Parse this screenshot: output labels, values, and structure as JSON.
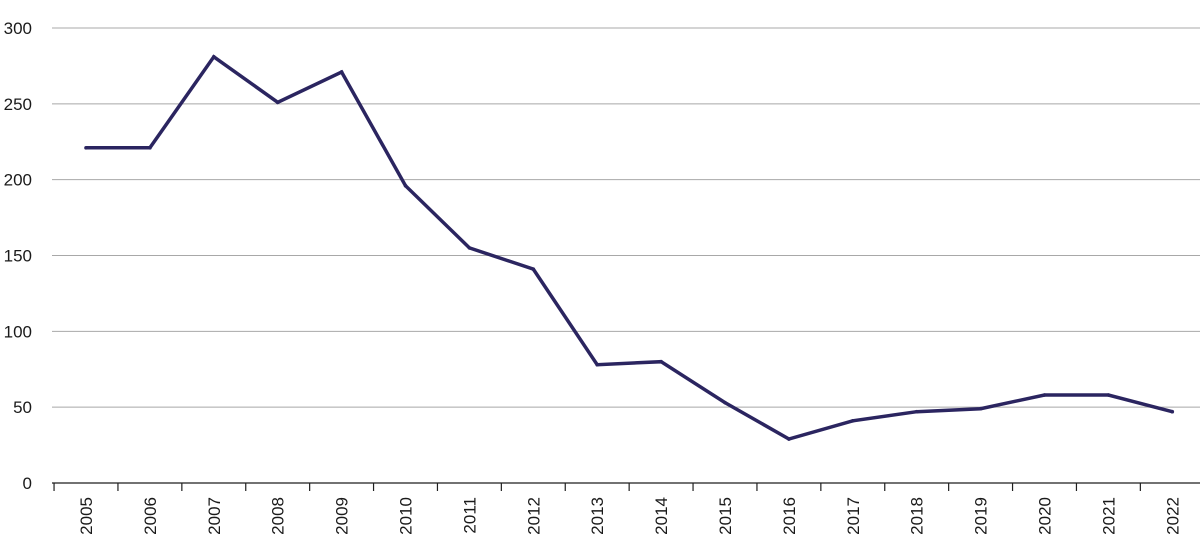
{
  "chart_data": {
    "type": "line",
    "title": "",
    "xlabel": "",
    "ylabel": "",
    "categories": [
      "2005",
      "2006",
      "2007",
      "2008",
      "2009",
      "2010",
      "2011",
      "2012",
      "2013",
      "2014",
      "2015",
      "2016",
      "2017",
      "2018",
      "2019",
      "2020",
      "2021",
      "2022"
    ],
    "series": [
      {
        "values": [
          221,
          221,
          281,
          251,
          271,
          196,
          155,
          141,
          78,
          80,
          53,
          29,
          41,
          47,
          49,
          58,
          58,
          47
        ],
        "color": "#2b2560"
      }
    ],
    "ylim": [
      0,
      300
    ],
    "yticks": [
      0,
      50,
      100,
      150,
      200,
      250,
      300
    ],
    "grid": true,
    "legend": "none"
  }
}
